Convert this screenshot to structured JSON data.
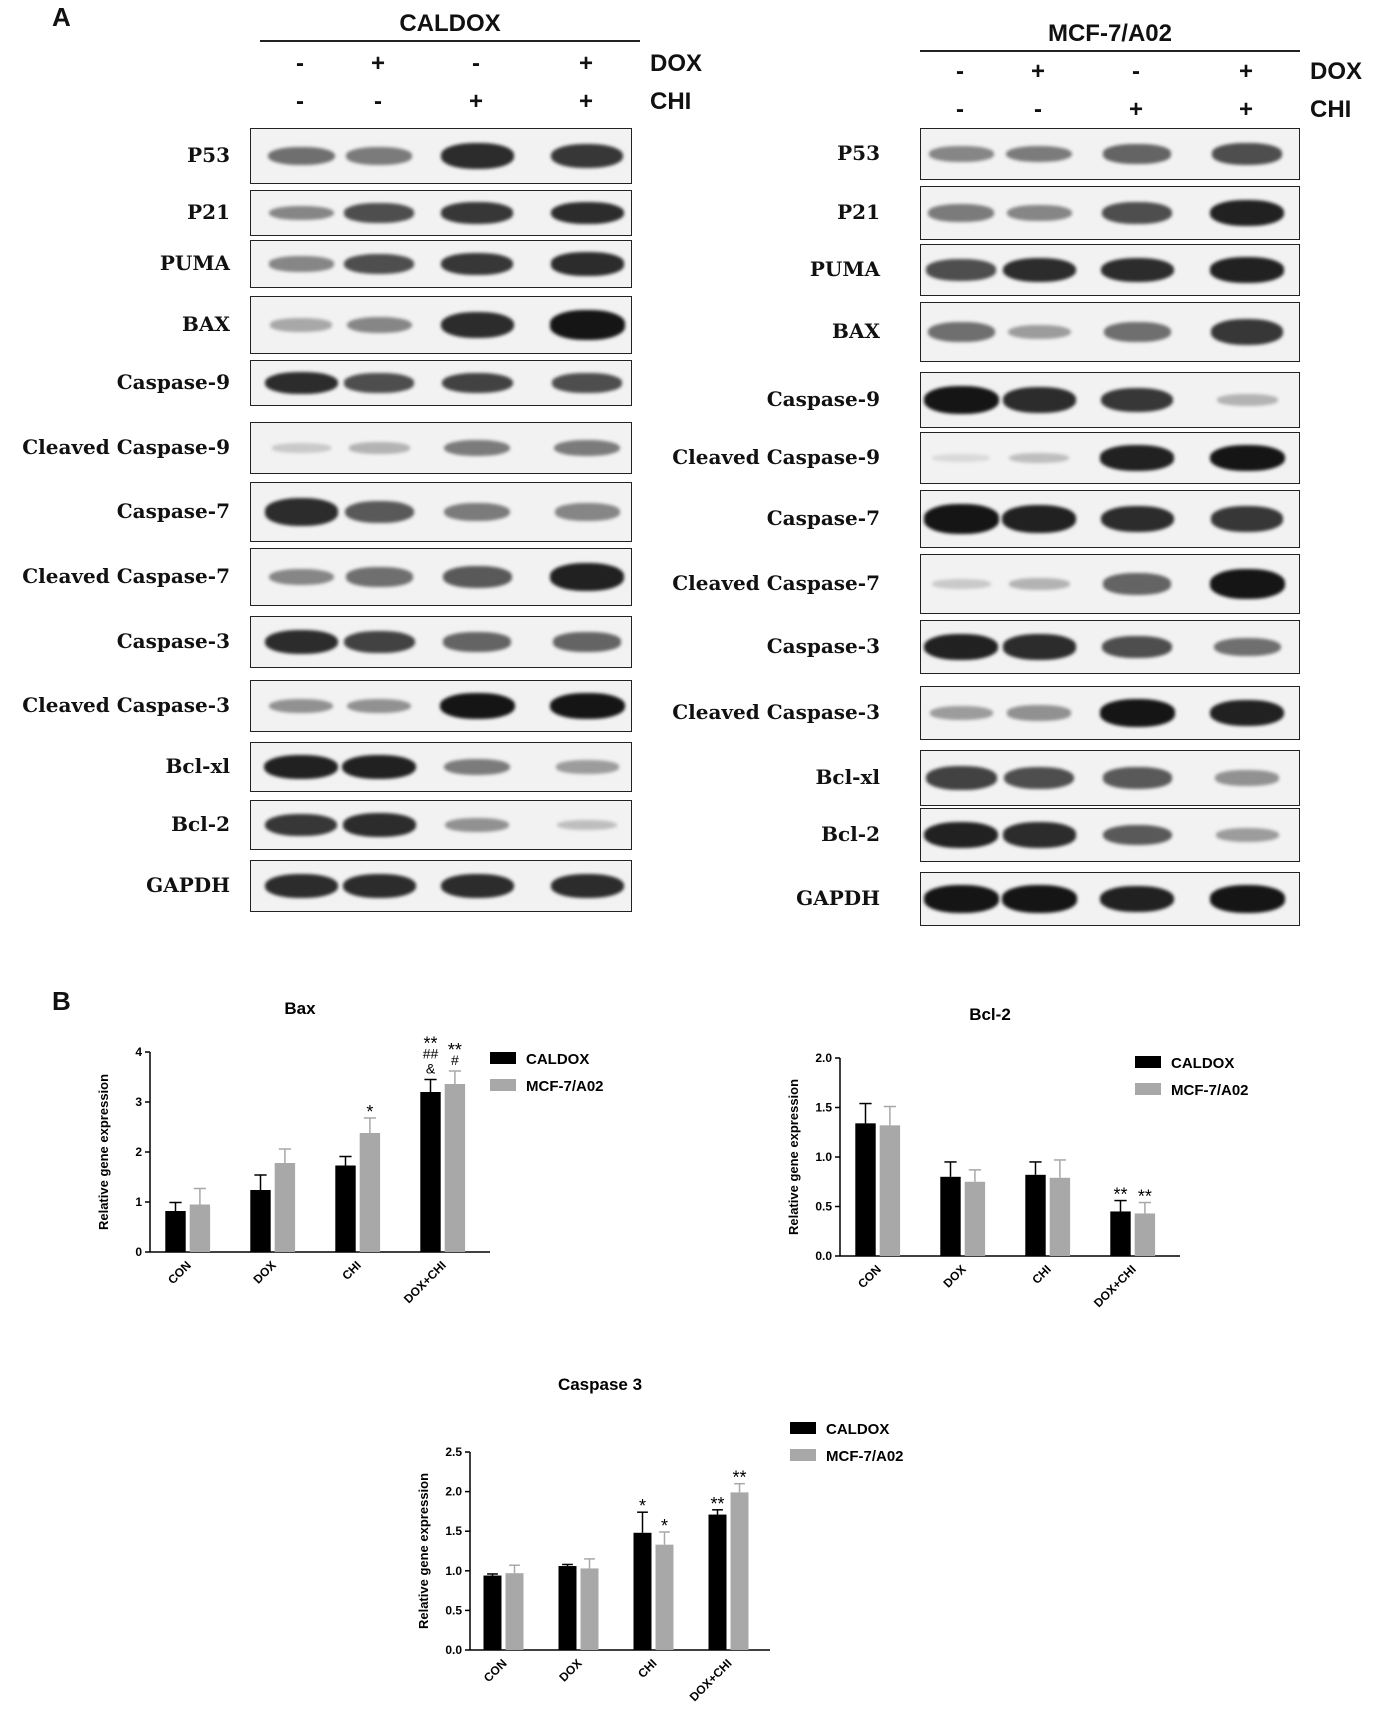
{
  "panel_a_label": "A",
  "panel_b_label": "B",
  "blots": [
    {
      "title": "CALDOX",
      "dox_row": [
        "-",
        "+",
        "-",
        "+"
      ],
      "chi_row": [
        "-",
        "-",
        "+",
        "+"
      ],
      "dox_label": "DOX",
      "chi_label": "CHI",
      "rows": [
        {
          "label": "P53",
          "intensities": [
            0.55,
            0.5,
            0.85,
            0.8
          ]
        },
        {
          "label": "P21",
          "intensities": [
            0.45,
            0.7,
            0.8,
            0.85
          ]
        },
        {
          "label": "PUMA",
          "intensities": [
            0.45,
            0.7,
            0.8,
            0.85
          ]
        },
        {
          "label": "BAX",
          "intensities": [
            0.3,
            0.45,
            0.85,
            0.95
          ]
        },
        {
          "label": "Caspase-9",
          "intensities": [
            0.85,
            0.7,
            0.75,
            0.7
          ]
        },
        {
          "label": "Cleaved Caspase-9",
          "intensities": [
            0.15,
            0.25,
            0.5,
            0.5
          ]
        },
        {
          "label": "Caspase-7",
          "intensities": [
            0.85,
            0.65,
            0.5,
            0.45
          ]
        },
        {
          "label": "Cleaved Caspase-7",
          "intensities": [
            0.45,
            0.55,
            0.65,
            0.9
          ]
        },
        {
          "label": "Caspase-3",
          "intensities": [
            0.85,
            0.75,
            0.6,
            0.6
          ]
        },
        {
          "label": "Cleaved Caspase-3",
          "intensities": [
            0.4,
            0.4,
            0.95,
            0.95
          ]
        },
        {
          "label": "Bcl-xl",
          "intensities": [
            0.9,
            0.9,
            0.5,
            0.35
          ]
        },
        {
          "label": "Bcl-2",
          "intensities": [
            0.8,
            0.85,
            0.4,
            0.2
          ]
        },
        {
          "label": "GAPDH",
          "intensities": [
            0.85,
            0.85,
            0.85,
            0.85
          ]
        }
      ]
    },
    {
      "title": "MCF-7/A02",
      "dox_row": [
        "-",
        "+",
        "-",
        "+"
      ],
      "chi_row": [
        "-",
        "-",
        "+",
        "+"
      ],
      "dox_label": "DOX",
      "chi_label": "CHI",
      "rows": [
        {
          "label": "P53",
          "intensities": [
            0.45,
            0.5,
            0.6,
            0.7
          ]
        },
        {
          "label": "P21",
          "intensities": [
            0.5,
            0.45,
            0.7,
            0.9
          ]
        },
        {
          "label": "PUMA",
          "intensities": [
            0.7,
            0.85,
            0.85,
            0.9
          ]
        },
        {
          "label": "BAX",
          "intensities": [
            0.55,
            0.35,
            0.55,
            0.8
          ]
        },
        {
          "label": "Caspase-9",
          "intensities": [
            0.95,
            0.85,
            0.8,
            0.25
          ]
        },
        {
          "label": "Cleaved Caspase-9",
          "intensities": [
            0.08,
            0.2,
            0.9,
            0.95
          ]
        },
        {
          "label": "Caspase-7",
          "intensities": [
            0.95,
            0.9,
            0.85,
            0.8
          ]
        },
        {
          "label": "Cleaved Caspase-7",
          "intensities": [
            0.15,
            0.25,
            0.6,
            0.95
          ]
        },
        {
          "label": "Caspase-3",
          "intensities": [
            0.9,
            0.85,
            0.7,
            0.55
          ]
        },
        {
          "label": "Cleaved Caspase-3",
          "intensities": [
            0.35,
            0.4,
            0.95,
            0.9
          ]
        },
        {
          "label": "Bcl-xl",
          "intensities": [
            0.75,
            0.7,
            0.65,
            0.4
          ]
        },
        {
          "label": "Bcl-2",
          "intensities": [
            0.9,
            0.85,
            0.65,
            0.35
          ]
        },
        {
          "label": "GAPDH",
          "intensities": [
            0.95,
            0.95,
            0.9,
            0.95
          ]
        }
      ]
    }
  ],
  "chart_data": [
    {
      "type": "bar",
      "title": "Bax",
      "ylabel": "Relative gene expression",
      "ylim": [
        0,
        4
      ],
      "yticks": [
        "0",
        "1",
        "2",
        "3",
        "4"
      ],
      "categories": [
        "CON",
        "DOX",
        "CHI",
        "DOX+CHI"
      ],
      "series": [
        {
          "name": "CALDOX",
          "color": "#000000",
          "values": [
            0.82,
            1.24,
            1.73,
            3.2
          ],
          "errors": [
            0.17,
            0.3,
            0.18,
            0.25
          ]
        },
        {
          "name": "MCF-7/A02",
          "color": "#a8a8a8",
          "values": [
            0.95,
            1.78,
            2.38,
            3.36
          ],
          "errors": [
            0.32,
            0.28,
            0.3,
            0.26
          ]
        }
      ],
      "annotations": [
        {
          "category": 2,
          "series": 1,
          "lines": [
            "*"
          ]
        },
        {
          "category": 3,
          "series": 0,
          "lines": [
            "**",
            "##",
            "&"
          ]
        },
        {
          "category": 3,
          "series": 1,
          "lines": [
            "**",
            "#"
          ]
        }
      ],
      "legend": "right"
    },
    {
      "type": "bar",
      "title": "Bcl-2",
      "ylabel": "Relative gene expression",
      "ylim": [
        0,
        2
      ],
      "yticks": [
        "0.0",
        "0.5",
        "1.0",
        "1.5",
        "2.0"
      ],
      "categories": [
        "CON",
        "DOX",
        "CHI",
        "DOX+CHI"
      ],
      "series": [
        {
          "name": "CALDOX",
          "color": "#000000",
          "values": [
            1.34,
            0.8,
            0.82,
            0.45
          ],
          "errors": [
            0.2,
            0.15,
            0.13,
            0.11
          ]
        },
        {
          "name": "MCF-7/A02",
          "color": "#a8a8a8",
          "values": [
            1.32,
            0.75,
            0.79,
            0.43
          ],
          "errors": [
            0.19,
            0.12,
            0.18,
            0.11
          ]
        }
      ],
      "annotations": [
        {
          "category": 3,
          "series": 0,
          "lines": [
            "**"
          ]
        },
        {
          "category": 3,
          "series": 1,
          "lines": [
            "**"
          ]
        }
      ],
      "legend": "right"
    },
    {
      "type": "bar",
      "title": "Caspase 3",
      "ylabel": "Relative gene expression",
      "ylim": [
        0,
        2.5
      ],
      "yticks": [
        "0.0",
        "0.5",
        "1.0",
        "1.5",
        "2.0",
        "2.5"
      ],
      "categories": [
        "CON",
        "DOX",
        "CHI",
        "DOX+CHI"
      ],
      "series": [
        {
          "name": "CALDOX",
          "color": "#000000",
          "values": [
            0.94,
            1.06,
            1.48,
            1.71
          ],
          "errors": [
            0.02,
            0.02,
            0.26,
            0.06
          ]
        },
        {
          "name": "MCF-7/A02",
          "color": "#a8a8a8",
          "values": [
            0.97,
            1.03,
            1.33,
            1.99
          ],
          "errors": [
            0.1,
            0.12,
            0.16,
            0.11
          ]
        }
      ],
      "annotations": [
        {
          "category": 2,
          "series": 0,
          "lines": [
            "*"
          ]
        },
        {
          "category": 2,
          "series": 1,
          "lines": [
            "*"
          ]
        },
        {
          "category": 3,
          "series": 0,
          "lines": [
            "**"
          ]
        },
        {
          "category": 3,
          "series": 1,
          "lines": [
            "**"
          ]
        }
      ],
      "legend": "right"
    }
  ]
}
